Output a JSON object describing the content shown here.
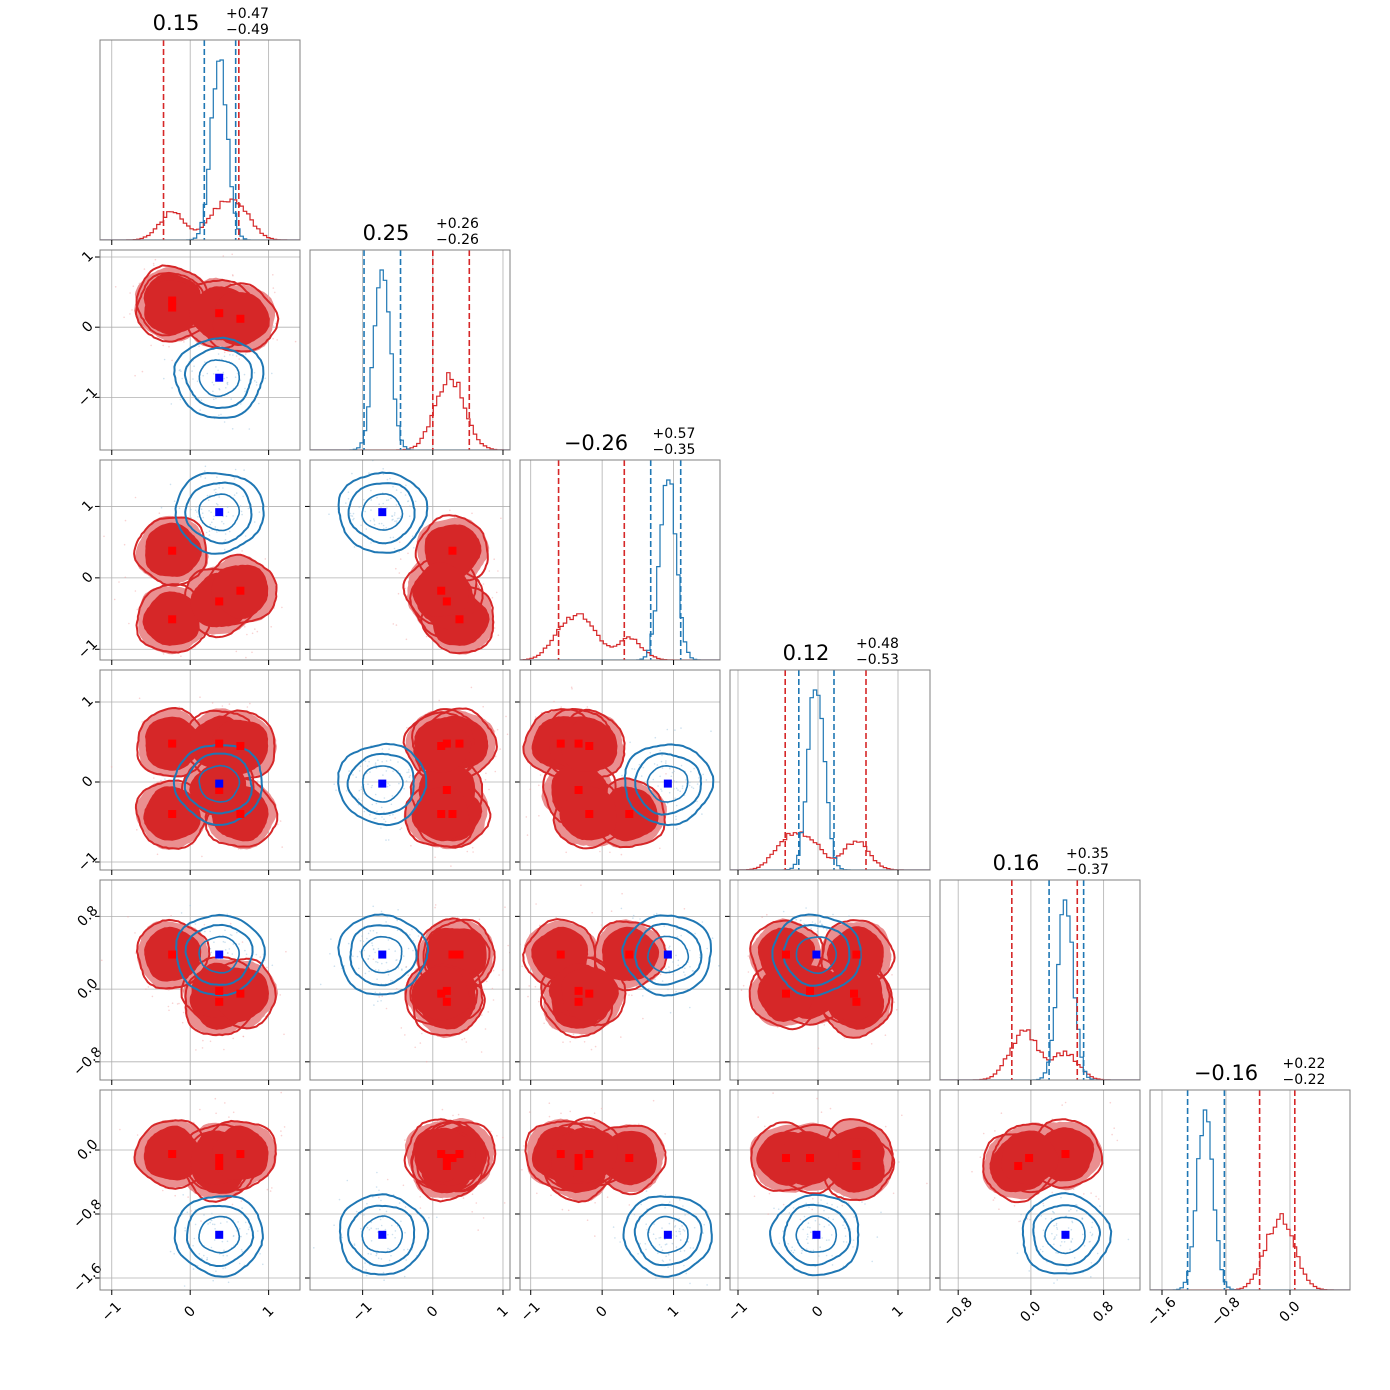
{
  "chart_data": {
    "type": "corner",
    "n_params": 6,
    "grid": true,
    "colors": {
      "red": "#d62728",
      "red_light": "#ea8f90",
      "blue": "#1f77b4",
      "marker_blue": "#0000ff",
      "marker_red": "#ff0000",
      "gridline": "#b0b0b0",
      "frame": "#808080"
    },
    "params": [
      {
        "median": "0.15",
        "plus": "+0.47",
        "minus": "−0.49",
        "lim": [
          -1.15,
          1.4
        ],
        "ticks": [
          -1,
          0,
          1
        ],
        "tick_labels": [
          "−1",
          "0",
          "1"
        ],
        "red_q": [
          -0.34,
          0.62
        ],
        "blue_q": [
          0.18,
          0.58
        ],
        "blue_mode": 0.37
      },
      {
        "median": "0.25",
        "plus": "+0.26",
        "minus": "−0.26",
        "lim": [
          -1.75,
          1.1
        ],
        "ticks": [
          -1,
          0,
          1
        ],
        "tick_labels": [
          "−1",
          "0",
          "1"
        ],
        "red_q": [
          0.0,
          0.52
        ],
        "blue_q": [
          -0.98,
          -0.46
        ],
        "blue_mode": -0.72
      },
      {
        "median": "−0.26",
        "plus": "+0.57",
        "minus": "−0.35",
        "lim": [
          -1.15,
          1.65
        ],
        "ticks": [
          -1,
          0,
          1
        ],
        "tick_labels": [
          "−1",
          "0",
          "1"
        ],
        "red_q": [
          -0.61,
          0.31
        ],
        "blue_q": [
          0.68,
          1.1
        ],
        "blue_mode": 0.92
      },
      {
        "median": "0.12",
        "plus": "+0.48",
        "minus": "−0.53",
        "lim": [
          -1.1,
          1.4
        ],
        "ticks": [
          -1,
          0,
          1
        ],
        "tick_labels": [
          "−1",
          "0",
          "1"
        ],
        "red_q": [
          -0.41,
          0.6
        ],
        "blue_q": [
          -0.24,
          0.2
        ],
        "blue_mode": -0.02
      },
      {
        "median": "0.16",
        "plus": "+0.35",
        "minus": "−0.37",
        "lim": [
          -1.0,
          1.2
        ],
        "ticks": [
          -0.8,
          0.0,
          0.8
        ],
        "tick_labels": [
          "−0.8",
          "0.0",
          "0.8"
        ],
        "red_q": [
          -0.21,
          0.51
        ],
        "blue_q": [
          0.2,
          0.58
        ],
        "blue_mode": 0.38
      },
      {
        "median": "−0.16",
        "plus": "+0.22",
        "minus": "−0.22",
        "lim": [
          -1.75,
          0.75
        ],
        "ticks": [
          -1.6,
          -0.8,
          0.0
        ],
        "tick_labels": [
          "−1.6",
          "−0.8",
          "0.0"
        ],
        "red_q": [
          -0.38,
          0.06
        ],
        "blue_q": [
          -1.28,
          -0.82
        ],
        "blue_mode": -1.06
      }
    ],
    "red_modes": [
      [
        -0.23,
        0.38,
        -0.58,
        0.48,
        0.38,
        -0.05
      ],
      [
        -0.23,
        0.28,
        0.38,
        -0.4,
        0.38,
        -0.1
      ],
      [
        0.37,
        0.2,
        -0.33,
        0.48,
        -0.14,
        -0.2
      ],
      [
        0.37,
        0.2,
        -0.33,
        -0.1,
        -0.02,
        -0.1
      ],
      [
        0.64,
        0.12,
        -0.18,
        0.45,
        -0.05,
        -0.05
      ],
      [
        0.64,
        0.12,
        -0.18,
        -0.4,
        -0.05,
        -0.05
      ]
    ],
    "blue_mode_points": {
      "p1": 0.37,
      "p2": -0.72,
      "p3": 0.92,
      "p4": -0.02,
      "p5": 0.38,
      "p6": -1.06
    }
  }
}
